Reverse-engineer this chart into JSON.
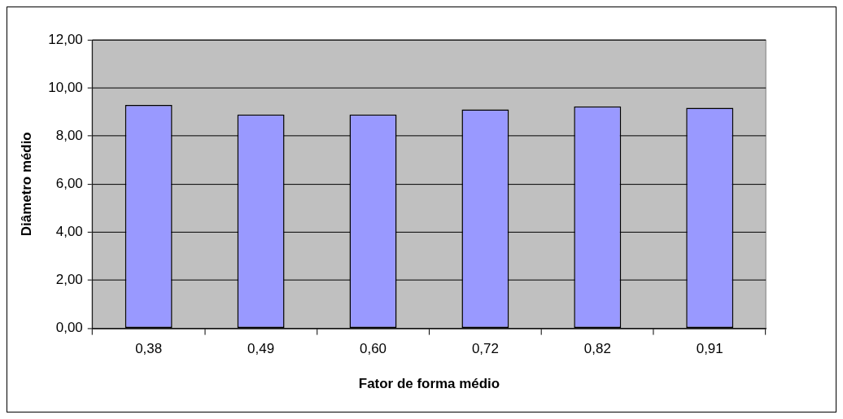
{
  "chart_data": {
    "type": "bar",
    "xlabel": "Fator de forma médio",
    "ylabel": "Diâmetro médio",
    "categories": [
      "0,38",
      "0,49",
      "0,60",
      "0,72",
      "0,82",
      "0,91"
    ],
    "values": [
      9.29,
      8.89,
      8.89,
      9.1,
      9.23,
      9.17
    ],
    "color": "#9999ff",
    "ylim": [
      0,
      12
    ],
    "yticks": [
      {
        "value": 0,
        "label": "0,00"
      },
      {
        "value": 2,
        "label": "2,00"
      },
      {
        "value": 4,
        "label": "4,00"
      },
      {
        "value": 6,
        "label": "6,00"
      },
      {
        "value": 8,
        "label": "8,00"
      },
      {
        "value": 10,
        "label": "10,00"
      },
      {
        "value": 12,
        "label": "12,00"
      }
    ],
    "grid": "y",
    "legend": false
  }
}
